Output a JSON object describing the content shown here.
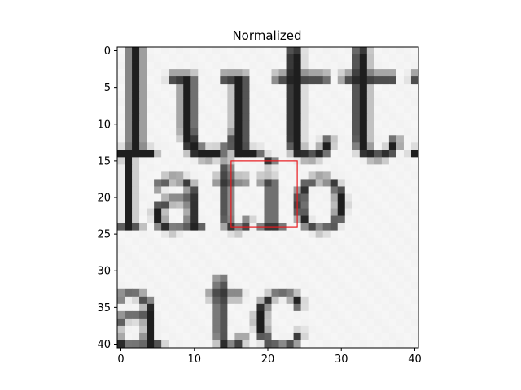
{
  "chart_data": {
    "type": "heatmap",
    "title": "Normalized",
    "xlabel": "",
    "ylabel": "",
    "image_size": [
      41,
      41
    ],
    "xlim": [
      -0.5,
      40.5
    ],
    "ylim": [
      40.5,
      -0.5
    ],
    "xticks": [
      0,
      10,
      20,
      30,
      40
    ],
    "yticks": [
      0,
      5,
      10,
      15,
      20,
      25,
      30,
      35,
      40
    ],
    "grid": false,
    "colormap": "gray",
    "image_content": "normalized grayscale crop of printed serif text showing three rows of partial letters: 'lutti' (top), 'latio' (middle) and 'a tc' (bottom)",
    "text_rows": [
      {
        "text": "lutti",
        "baseline": 14.5,
        "cap": -1.5,
        "x_height": 1.5,
        "start": -1.6,
        "spacing": 1.0,
        "glyphs": [
          [
            "l",
            5.5
          ],
          [
            "u",
            15.2
          ],
          [
            "t",
            19.2
          ],
          [
            "t",
            26.0
          ],
          [
            "i",
            31.5
          ]
        ]
      },
      {
        "text": "latio",
        "baseline": 24.5,
        "cap": 14.3,
        "x_height": 16.5,
        "start": -1.2,
        "spacing": 0.9,
        "glyphs": [
          [
            "l",
            0.5
          ],
          [
            "a",
            10.5
          ],
          [
            "t",
            14.5
          ],
          [
            "i",
            19.5
          ],
          [
            "o",
            26.5
          ]
        ]
      },
      {
        "text": "a tc",
        "baseline": 40.5,
        "cap": 30.0,
        "x_height": 33.0,
        "start": -2.5,
        "spacing": 1.0,
        "glyphs": [
          [
            "a",
            0.0
          ],
          [
            "t",
            23.0
          ],
          [
            "c",
            29.5
          ]
        ]
      }
    ],
    "highlight_box": {
      "x": [
        15,
        24
      ],
      "y": [
        15,
        24
      ],
      "color": "#e8191e"
    }
  }
}
